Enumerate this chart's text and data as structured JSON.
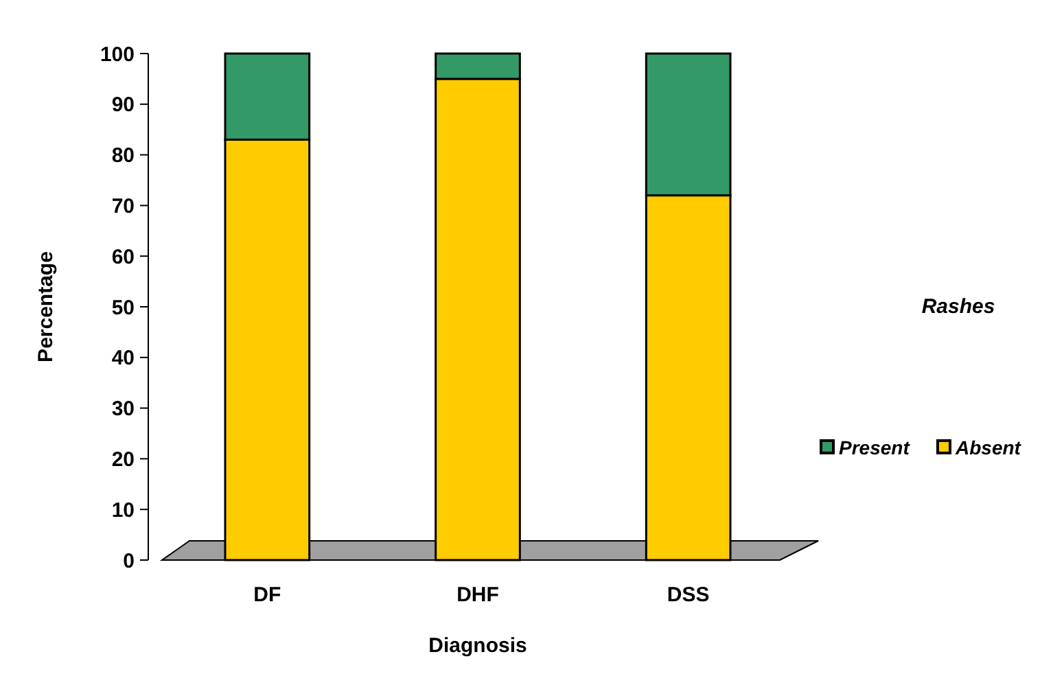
{
  "chart_data": {
    "type": "bar",
    "stacked": true,
    "xlabel": "Diagnosis",
    "ylabel": "Percentage",
    "legend_title": "Rashes",
    "legend": "right",
    "categories": [
      "DF",
      "DHF",
      "DSS"
    ],
    "ylim": [
      0,
      100
    ],
    "yticks": [
      0,
      10,
      20,
      30,
      40,
      50,
      60,
      70,
      80,
      90,
      100
    ],
    "series": [
      {
        "name": "Absent",
        "color": "#ffcc00",
        "values": [
          83,
          95,
          72
        ]
      },
      {
        "name": "Present",
        "color": "#339966",
        "values": [
          17,
          5,
          28
        ]
      }
    ]
  }
}
